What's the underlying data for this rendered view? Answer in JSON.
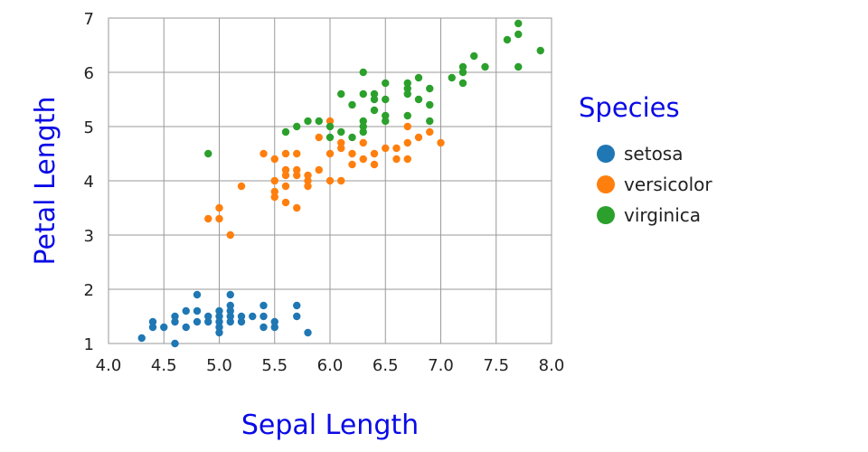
{
  "chart_data": {
    "type": "scatter",
    "xlabel": "Sepal Length",
    "ylabel": "Petal Length",
    "xlim": [
      4.0,
      8.0
    ],
    "ylim": [
      1,
      7
    ],
    "xticks": [
      "4.0",
      "4.5",
      "5.0",
      "5.5",
      "6.0",
      "6.5",
      "7.0",
      "7.5",
      "8.0"
    ],
    "yticks": [
      "1",
      "2",
      "3",
      "4",
      "5",
      "6",
      "7"
    ],
    "grid": true,
    "legend": {
      "title": "Species",
      "position": "right"
    },
    "series": [
      {
        "name": "setosa",
        "color": "#1f77b4",
        "points": [
          [
            4.3,
            1.1
          ],
          [
            4.4,
            1.3
          ],
          [
            4.4,
            1.4
          ],
          [
            4.5,
            1.3
          ],
          [
            4.6,
            1.0
          ],
          [
            4.6,
            1.4
          ],
          [
            4.6,
            1.5
          ],
          [
            4.7,
            1.3
          ],
          [
            4.7,
            1.6
          ],
          [
            4.8,
            1.4
          ],
          [
            4.8,
            1.6
          ],
          [
            4.8,
            1.9
          ],
          [
            4.9,
            1.4
          ],
          [
            4.9,
            1.5
          ],
          [
            5.0,
            1.2
          ],
          [
            5.0,
            1.3
          ],
          [
            5.0,
            1.4
          ],
          [
            5.0,
            1.5
          ],
          [
            5.0,
            1.6
          ],
          [
            5.1,
            1.4
          ],
          [
            5.1,
            1.5
          ],
          [
            5.1,
            1.6
          ],
          [
            5.1,
            1.7
          ],
          [
            5.1,
            1.9
          ],
          [
            5.2,
            1.4
          ],
          [
            5.2,
            1.5
          ],
          [
            5.3,
            1.5
          ],
          [
            5.4,
            1.3
          ],
          [
            5.4,
            1.5
          ],
          [
            5.4,
            1.7
          ],
          [
            5.5,
            1.3
          ],
          [
            5.5,
            1.4
          ],
          [
            5.7,
            1.5
          ],
          [
            5.7,
            1.7
          ],
          [
            5.8,
            1.2
          ]
        ]
      },
      {
        "name": "versicolor",
        "color": "#ff7f0e",
        "points": [
          [
            4.9,
            3.3
          ],
          [
            5.0,
            3.3
          ],
          [
            5.0,
            3.5
          ],
          [
            5.1,
            3.0
          ],
          [
            5.2,
            3.9
          ],
          [
            5.4,
            4.5
          ],
          [
            5.5,
            3.7
          ],
          [
            5.5,
            3.8
          ],
          [
            5.5,
            4.0
          ],
          [
            5.5,
            4.4
          ],
          [
            5.6,
            3.6
          ],
          [
            5.6,
            3.9
          ],
          [
            5.6,
            4.1
          ],
          [
            5.6,
            4.2
          ],
          [
            5.6,
            4.5
          ],
          [
            5.7,
            3.5
          ],
          [
            5.7,
            4.1
          ],
          [
            5.7,
            4.2
          ],
          [
            5.7,
            4.5
          ],
          [
            5.8,
            3.9
          ],
          [
            5.8,
            4.0
          ],
          [
            5.8,
            4.1
          ],
          [
            5.9,
            4.2
          ],
          [
            5.9,
            4.8
          ],
          [
            6.0,
            4.0
          ],
          [
            6.0,
            4.5
          ],
          [
            6.0,
            5.1
          ],
          [
            6.1,
            4.0
          ],
          [
            6.1,
            4.6
          ],
          [
            6.1,
            4.7
          ],
          [
            6.2,
            4.3
          ],
          [
            6.2,
            4.5
          ],
          [
            6.3,
            4.4
          ],
          [
            6.3,
            4.7
          ],
          [
            6.4,
            4.3
          ],
          [
            6.4,
            4.5
          ],
          [
            6.5,
            4.6
          ],
          [
            6.6,
            4.4
          ],
          [
            6.6,
            4.6
          ],
          [
            6.7,
            4.4
          ],
          [
            6.7,
            4.7
          ],
          [
            6.7,
            5.0
          ],
          [
            6.8,
            4.8
          ],
          [
            6.9,
            4.9
          ],
          [
            7.0,
            4.7
          ]
        ]
      },
      {
        "name": "virginica",
        "color": "#2ca02c",
        "points": [
          [
            4.9,
            4.5
          ],
          [
            5.6,
            4.9
          ],
          [
            5.7,
            5.0
          ],
          [
            5.8,
            5.1
          ],
          [
            5.9,
            5.1
          ],
          [
            6.0,
            4.8
          ],
          [
            6.0,
            5.0
          ],
          [
            6.1,
            4.9
          ],
          [
            6.1,
            5.6
          ],
          [
            6.2,
            4.8
          ],
          [
            6.2,
            5.4
          ],
          [
            6.3,
            4.9
          ],
          [
            6.3,
            5.0
          ],
          [
            6.3,
            5.1
          ],
          [
            6.3,
            5.6
          ],
          [
            6.3,
            6.0
          ],
          [
            6.4,
            5.3
          ],
          [
            6.4,
            5.5
          ],
          [
            6.4,
            5.6
          ],
          [
            6.5,
            5.1
          ],
          [
            6.5,
            5.2
          ],
          [
            6.5,
            5.5
          ],
          [
            6.5,
            5.8
          ],
          [
            6.7,
            5.2
          ],
          [
            6.7,
            5.6
          ],
          [
            6.7,
            5.7
          ],
          [
            6.7,
            5.8
          ],
          [
            6.8,
            5.5
          ],
          [
            6.8,
            5.9
          ],
          [
            6.9,
            5.1
          ],
          [
            6.9,
            5.4
          ],
          [
            6.9,
            5.7
          ],
          [
            7.1,
            5.9
          ],
          [
            7.2,
            5.8
          ],
          [
            7.2,
            6.0
          ],
          [
            7.2,
            6.1
          ],
          [
            7.3,
            6.3
          ],
          [
            7.4,
            6.1
          ],
          [
            7.6,
            6.6
          ],
          [
            7.7,
            6.1
          ],
          [
            7.7,
            6.7
          ],
          [
            7.7,
            6.9
          ],
          [
            7.9,
            6.4
          ]
        ]
      }
    ]
  }
}
